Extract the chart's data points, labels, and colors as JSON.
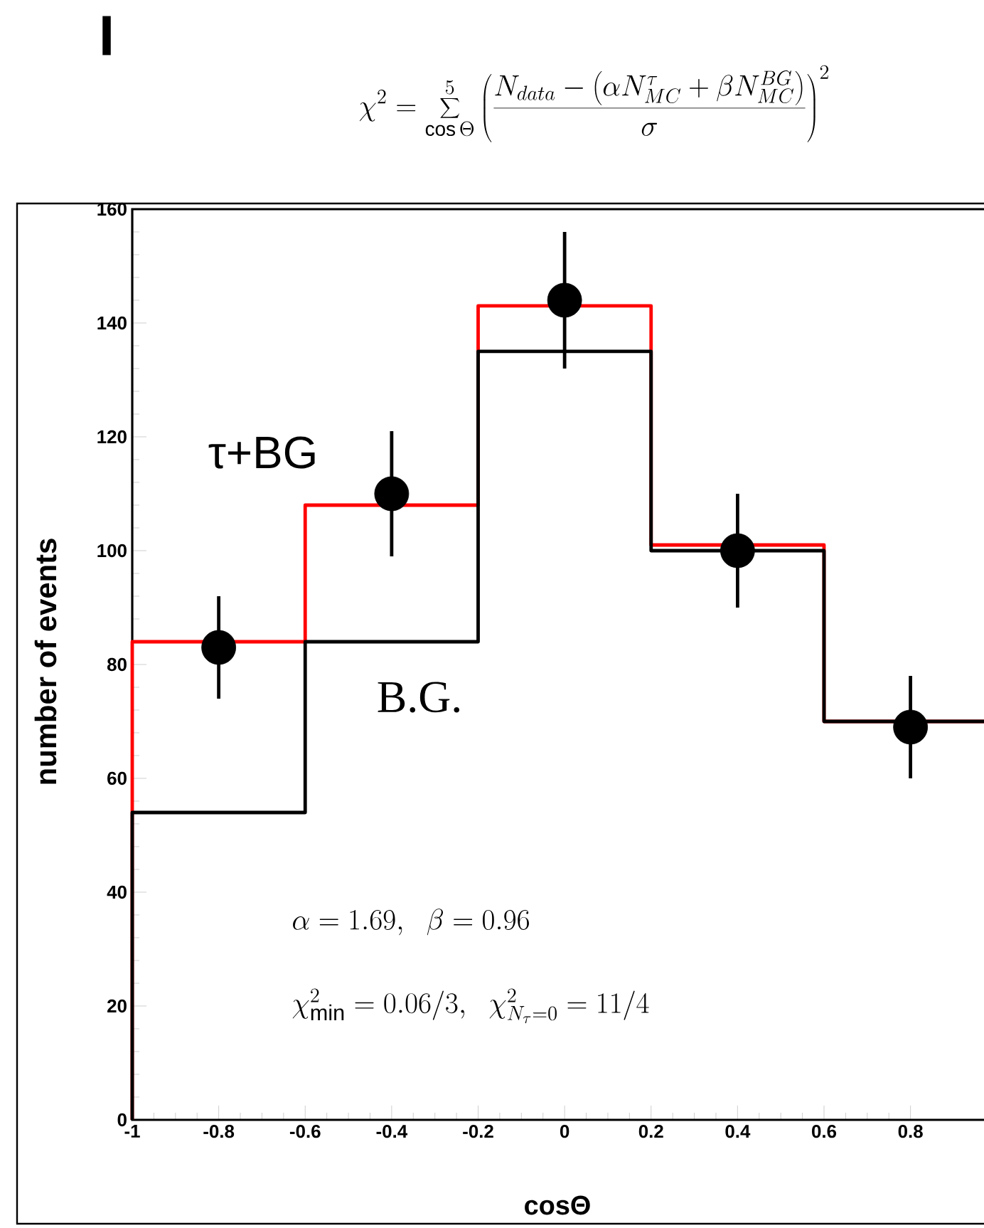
{
  "chart_data": {
    "type": "histogram",
    "title": "\\chi^2 = \\sum_{\\cos\\Theta}^{5}\\left(\\frac{N_{data} - \\left(\\alpha N^{\\tau}_{MC} + \\beta N^{BG}_{MC}\\right)}{\\sigma}\\right)^2",
    "xlabel": "cosΘ",
    "ylabel": "number of events",
    "bins": [
      -1,
      -0.6,
      -0.2,
      0.2,
      0.6,
      1
    ],
    "xlim": [
      -1,
      1
    ],
    "ylim": [
      0,
      160
    ],
    "xticks": [
      -1,
      -0.8,
      -0.6,
      -0.4,
      -0.2,
      0,
      0.2,
      0.4,
      0.6,
      0.8
    ],
    "yticks": [
      0,
      20,
      40,
      60,
      80,
      100,
      120,
      140,
      160
    ],
    "series": [
      {
        "name": "τ+BG",
        "color": "#ff0000",
        "values": [
          84,
          108,
          143,
          101,
          70
        ]
      },
      {
        "name": "B.G.",
        "color": "#000000",
        "values": [
          54,
          84,
          135,
          100,
          70
        ]
      },
      {
        "type": "scatter",
        "color": "#000000",
        "marker": "circle",
        "x": [
          -0.8,
          -0.4,
          0,
          0.4,
          0.8
        ],
        "values": [
          83,
          110,
          144,
          100,
          69
        ],
        "errors": [
          9,
          11,
          12,
          10,
          9
        ]
      }
    ],
    "annotations": [
      "I",
      "\\alpha = 1.69,\\ \\ \\beta = 0.96",
      "\\chi^2_{\\min} = 0.06/3,\\ \\ \\chi^2_{N_\\tau=0} = 11/4"
    ]
  }
}
